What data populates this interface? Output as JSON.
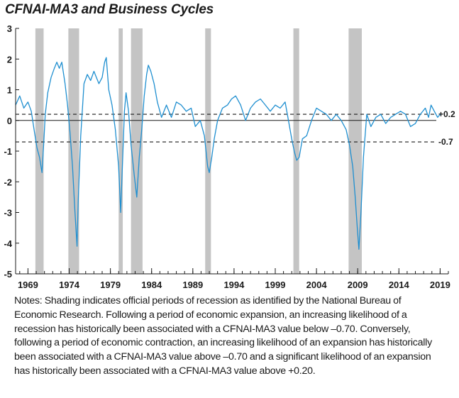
{
  "chart_data": {
    "type": "line",
    "title": "CFNAI-MA3 and Business Cycles",
    "xlabel": "",
    "ylabel": "",
    "xlim": [
      1967.5,
      2020.0
    ],
    "ylim": [
      -5,
      3
    ],
    "y_ticks": [
      3,
      2,
      1,
      0,
      -1,
      -2,
      -3,
      -4,
      -5
    ],
    "y_tick_labels": [
      "3",
      "2",
      "1",
      "0",
      "-1",
      "-2",
      "-3",
      "-4",
      "-5"
    ],
    "x_ticks": [
      1969,
      1974,
      1979,
      1984,
      1989,
      1994,
      1999,
      2004,
      2009,
      2014,
      2019
    ],
    "x_tick_labels": [
      "1969",
      "1974",
      "1979",
      "1984",
      "1989",
      "1994",
      "1999",
      "2004",
      "2009",
      "2014",
      "2019"
    ],
    "grid": false,
    "line_color": "#1f8fd0",
    "shading_color": "#c4c4c4",
    "recessions": [
      {
        "start": 1969.9,
        "end": 1970.9
      },
      {
        "start": 1973.9,
        "end": 1975.2
      },
      {
        "start": 1980.0,
        "end": 1980.5
      },
      {
        "start": 1981.5,
        "end": 1982.9
      },
      {
        "start": 1990.5,
        "end": 1991.2
      },
      {
        "start": 2001.2,
        "end": 2001.9
      },
      {
        "start": 2007.9,
        "end": 2009.5
      }
    ],
    "reference_lines": [
      {
        "value": 0.2,
        "label": "+0.2",
        "style": "dashed"
      },
      {
        "value": 0,
        "label": "",
        "style": "solid"
      },
      {
        "value": -0.7,
        "label": "-0.7",
        "style": "dashed"
      }
    ],
    "series": [
      {
        "x": [
          1967.5,
          1968.0,
          1968.5,
          1969.0,
          1969.4,
          1969.8,
          1970.1,
          1970.4,
          1970.7,
          1970.9,
          1971.1,
          1971.4,
          1971.8,
          1972.2,
          1972.5,
          1972.8,
          1973.1,
          1973.5,
          1973.8,
          1974.1,
          1974.4,
          1974.7,
          1974.95,
          1975.1,
          1975.4,
          1975.8,
          1976.2,
          1976.6,
          1977.0,
          1977.3,
          1977.6,
          1978.0,
          1978.3,
          1978.5,
          1978.8,
          1979.2,
          1979.6,
          1980.0,
          1980.25,
          1980.45,
          1980.7,
          1980.9,
          1981.2,
          1981.5,
          1981.9,
          1982.2,
          1982.5,
          1982.8,
          1983.1,
          1983.4,
          1983.6,
          1983.9,
          1984.3,
          1984.7,
          1985.2,
          1985.8,
          1986.4,
          1987.0,
          1987.6,
          1988.2,
          1988.8,
          1989.3,
          1989.9,
          1990.4,
          1990.8,
          1991.0,
          1991.3,
          1991.6,
          1992.0,
          1992.6,
          1993.2,
          1993.7,
          1994.2,
          1994.8,
          1995.4,
          1996.0,
          1996.6,
          1997.2,
          1997.8,
          1998.4,
          1999.0,
          1999.6,
          2000.2,
          2000.6,
          2001.0,
          2001.3,
          2001.6,
          2001.9,
          2002.3,
          2002.8,
          2003.4,
          2004.0,
          2004.6,
          2005.2,
          2005.8,
          2006.4,
          2007.0,
          2007.6,
          2008.0,
          2008.4,
          2008.7,
          2008.95,
          2009.15,
          2009.4,
          2009.7,
          2010.1,
          2010.6,
          2011.2,
          2011.8,
          2012.4,
          2013.0,
          2013.6,
          2014.2,
          2014.8,
          2015.4,
          2016.0,
          2016.6,
          2017.2,
          2017.6,
          2017.9,
          2018.3,
          2018.7,
          2019.0
        ],
        "values": [
          0.5,
          0.8,
          0.4,
          0.6,
          0.3,
          -0.4,
          -0.9,
          -1.2,
          -1.7,
          -0.8,
          0.2,
          0.9,
          1.4,
          1.7,
          1.9,
          1.7,
          1.9,
          1.2,
          0.5,
          -0.4,
          -1.5,
          -3.0,
          -4.1,
          -2.6,
          -0.5,
          1.2,
          1.5,
          1.3,
          1.6,
          1.4,
          1.2,
          1.4,
          1.9,
          2.05,
          1.0,
          0.5,
          -0.3,
          -1.5,
          -3.0,
          -1.5,
          0.3,
          0.9,
          0.3,
          -0.8,
          -1.8,
          -2.5,
          -1.2,
          -0.3,
          0.8,
          1.5,
          1.8,
          1.6,
          1.2,
          0.6,
          0.1,
          0.5,
          0.1,
          0.6,
          0.5,
          0.3,
          0.4,
          -0.2,
          0.0,
          -0.5,
          -1.5,
          -1.7,
          -1.2,
          -0.6,
          0.0,
          0.4,
          0.5,
          0.7,
          0.8,
          0.5,
          0.0,
          0.4,
          0.6,
          0.7,
          0.5,
          0.3,
          0.5,
          0.4,
          0.6,
          0.0,
          -0.6,
          -1.0,
          -1.3,
          -1.2,
          -0.6,
          -0.5,
          0.0,
          0.4,
          0.3,
          0.2,
          0.0,
          0.2,
          0.0,
          -0.3,
          -0.8,
          -1.5,
          -2.5,
          -3.5,
          -4.2,
          -3.0,
          -1.2,
          0.2,
          -0.2,
          0.1,
          0.2,
          -0.1,
          0.1,
          0.2,
          0.3,
          0.2,
          -0.2,
          -0.1,
          0.2,
          0.4,
          0.1,
          0.5,
          0.3,
          0.1,
          0.2
        ]
      }
    ]
  },
  "notes": "Notes: Shading indicates official periods of recession as identified by the National Bureau of Economic Research. Following a period of economic expansion, an increasing likelihood of a recession has historically been associated with a CFNAI-MA3 value below –0.70. Conversely, following a period of economic contraction, an increasing likelihood of an expansion has historically been associated with a CFNAI-MA3 value above –0.70 and a significant likelihood of an expansion has historically been associated with a CFNAI-MA3 value above +0.20."
}
